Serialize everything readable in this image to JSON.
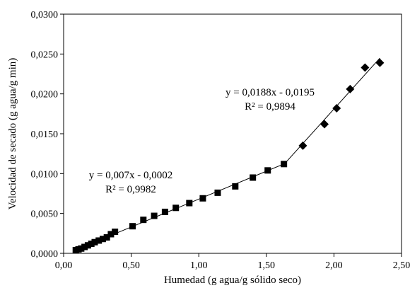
{
  "chart_data": {
    "type": "scatter",
    "xlabel": "Humedad (g agua/g sólido seco)",
    "ylabel": "Velocidad de secado (g agua/g min)",
    "xlim": [
      0,
      2.5
    ],
    "ylim": [
      0,
      0.03
    ],
    "x_ticks": [
      "0,00",
      "0,50",
      "1,00",
      "1,50",
      "2,00",
      "2,50"
    ],
    "y_ticks": [
      "0,0000",
      "0,0050",
      "0,0100",
      "0,0150",
      "0,0200",
      "0,0250",
      "0,0300"
    ],
    "grid": false,
    "series": [
      {
        "marker": "square",
        "color": "#000000",
        "x": [
          0.09,
          0.11,
          0.13,
          0.155,
          0.18,
          0.205,
          0.23,
          0.26,
          0.29,
          0.32,
          0.35,
          0.38,
          0.51,
          0.59,
          0.67,
          0.75,
          0.83,
          0.93,
          1.03,
          1.14,
          1.27,
          1.4,
          1.51,
          1.63
        ],
        "y": [
          0.0004,
          0.0005,
          0.0006,
          0.0008,
          0.001,
          0.0012,
          0.0014,
          0.0016,
          0.0018,
          0.002,
          0.0024,
          0.0027,
          0.0034,
          0.0042,
          0.0047,
          0.0052,
          0.0057,
          0.0063,
          0.0069,
          0.0076,
          0.0084,
          0.0095,
          0.0104,
          0.0112
        ]
      },
      {
        "marker": "diamond",
        "color": "#000000",
        "x": [
          1.77,
          1.93,
          2.02,
          2.12,
          2.23,
          2.34
        ],
        "y": [
          0.0135,
          0.0162,
          0.0182,
          0.0206,
          0.0233,
          0.0239
        ]
      }
    ],
    "trendlines": [
      {
        "slope": 0.007,
        "intercept": -0.0002,
        "x_range": [
          0.09,
          1.63
        ]
      },
      {
        "slope": 0.0188,
        "intercept": -0.0195,
        "x_range": [
          1.63,
          2.34
        ]
      }
    ],
    "annotations": [
      {
        "equation": "y = 0,007x - 0,0002",
        "r2": "R² = 0,9982"
      },
      {
        "equation": "y = 0,0188x - 0,0195",
        "r2": "R² = 0,9894"
      }
    ]
  }
}
